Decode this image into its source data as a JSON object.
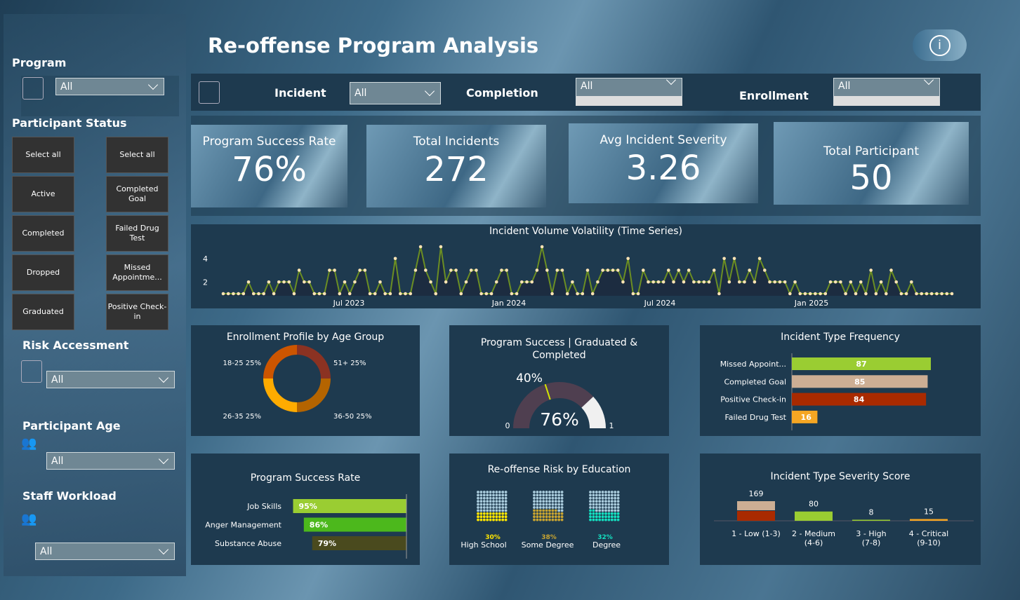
{
  "header": {
    "title": "Re-offense Program Analysis",
    "info_icon": "info-icon"
  },
  "filters": {
    "incident": {
      "label": "Incident",
      "value": "All"
    },
    "completion": {
      "label": "Completion",
      "value": "All"
    },
    "enrollment": {
      "label": "Enrollment",
      "value": "All"
    }
  },
  "sidebar": {
    "program": {
      "label": "Program",
      "value": "All"
    },
    "participant_status": {
      "label": "Participant Status",
      "left": [
        "Select all",
        "Active",
        "Completed",
        "Dropped",
        "Graduated"
      ],
      "right": [
        "Select all",
        "Completed Goal",
        "Failed Drug Test",
        "Missed Appointme...",
        "Positive Check-in"
      ]
    },
    "risk": {
      "label": "Risk Accessment",
      "value": "All"
    },
    "age": {
      "label": "Participant Age",
      "value": "All"
    },
    "workload": {
      "label": "Staff Workload",
      "value": "All"
    }
  },
  "kpis": [
    {
      "label": "Program Success Rate",
      "value": "76%"
    },
    {
      "label": "Total Incidents",
      "value": "272"
    },
    {
      "label": "Avg Incident Severity",
      "value": "3.26"
    },
    {
      "label": "Total Participant",
      "value": "50"
    }
  ],
  "chart_data": [
    {
      "type": "line",
      "title": "Incident Volume Volatility (Time Series)",
      "x_ticks": [
        "Jul 2023",
        "Jan 2024",
        "Jul 2024",
        "Jan 2025"
      ],
      "y_ticks": [
        2,
        4
      ],
      "x_range": [
        "2023-03",
        "2025-05"
      ],
      "ylim": [
        1,
        5
      ],
      "line_color": "#6b8e23",
      "marker_color": "#ffe4b5",
      "values": [
        1,
        1,
        1,
        1,
        1,
        2,
        1,
        1,
        1,
        2,
        1,
        2,
        2,
        2,
        1,
        3,
        2,
        2,
        1,
        1,
        1,
        3,
        3,
        1,
        2,
        1,
        2,
        3,
        3,
        1,
        1,
        2,
        1,
        1,
        4,
        1,
        1,
        1,
        3,
        5,
        3,
        2,
        1,
        5,
        2,
        3,
        3,
        1,
        2,
        3,
        3,
        1,
        1,
        1,
        2,
        3,
        3,
        1,
        1,
        2,
        2,
        2,
        3,
        5,
        3,
        1,
        3,
        3,
        1,
        2,
        1,
        1,
        3,
        1,
        2,
        3,
        3,
        3,
        3,
        2,
        4,
        1,
        1,
        3,
        2,
        2,
        2,
        2,
        3,
        2,
        3,
        2,
        3,
        2,
        2,
        2,
        2,
        3,
        1,
        4,
        2,
        4,
        2,
        2,
        3,
        2,
        4,
        3,
        2,
        2,
        2,
        2,
        1,
        2,
        1,
        1,
        1,
        1,
        1,
        1,
        2,
        2,
        2,
        1,
        2,
        1,
        2,
        1,
        3,
        1,
        2,
        1,
        3,
        2,
        1,
        1,
        2,
        1,
        1,
        1,
        1,
        1,
        1,
        1,
        1
      ]
    },
    {
      "type": "pie",
      "title": "Enrollment Profile by Age Group",
      "categories": [
        "51+",
        "36-50",
        "26-35",
        "18-25"
      ],
      "values": [
        25,
        25,
        25,
        25
      ],
      "labels": [
        "51+ 25%",
        "36-50 25%",
        "26-35 25%",
        "18-25 25%"
      ],
      "colors": [
        "#8b3222",
        "#b46400",
        "#ffab00",
        "#cc5500"
      ]
    },
    {
      "type": "gauge",
      "title": "Program Success | Graduated & Completed",
      "value": 0.76,
      "value_label": "76%",
      "target": 0.4,
      "target_label": "40%",
      "min_label": "0",
      "max_label": "1",
      "fill_color": "#4f3f50",
      "rest_color": "#f0f0f0",
      "target_color": "#d4e600"
    },
    {
      "type": "bar",
      "title": "Incident Type Frequency",
      "categories": [
        "Missed Appoint...",
        "Completed Goal",
        "Positive Check-in",
        "Failed Drug Test"
      ],
      "values": [
        87,
        85,
        84,
        16
      ],
      "colors": [
        "#9acd32",
        "#ccae94",
        "#a92a00",
        "#f5a623"
      ]
    },
    {
      "type": "bar",
      "title": "Program Success Rate",
      "categories": [
        "Job Skills",
        "Anger Management",
        "Substance Abuse"
      ],
      "values": [
        95,
        86,
        79
      ],
      "labels": [
        "95%",
        "86%",
        "79%"
      ],
      "colors": [
        "#9acd32",
        "#4cb81c",
        "#4a4a1e"
      ]
    },
    {
      "type": "waffle",
      "title": "Re-offense Risk by Education",
      "categories": [
        "High School",
        "Some Degree",
        "Degree"
      ],
      "values": [
        30,
        38,
        32
      ],
      "labels": [
        "30%",
        "38%",
        "32%"
      ],
      "colors": [
        "#ffe600",
        "#c8a431",
        "#14e0c0"
      ],
      "base_color": "#a9cbdc"
    },
    {
      "type": "bar",
      "title": "Incident Type Severity Score",
      "categories": [
        "1 - Low (1-3)",
        "2 - Medium (4-6)",
        "3 - High (7-8)",
        "4 - Critical (9-10)"
      ],
      "values": [
        169,
        80,
        8,
        15
      ],
      "colors": [
        "#ccae94",
        "#9acd32",
        "#9acd32",
        "#f5a623"
      ]
    }
  ]
}
